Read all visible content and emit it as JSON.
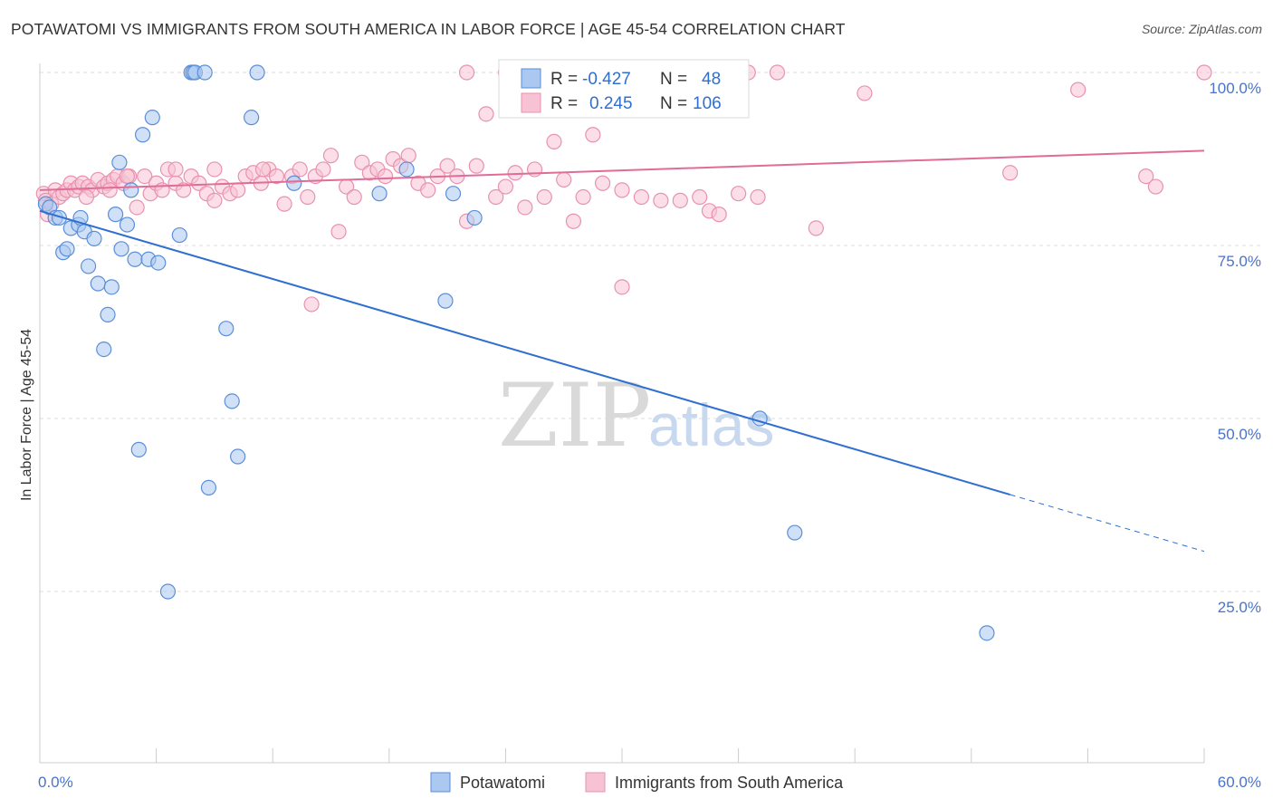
{
  "title": "POTAWATOMI VS IMMIGRANTS FROM SOUTH AMERICA IN LABOR FORCE | AGE 45-54 CORRELATION CHART",
  "source": "Source: ZipAtlas.com",
  "watermark": {
    "zip": "ZIP",
    "atlas": "atlas"
  },
  "legend": {
    "rows": [
      {
        "r_label": "R =",
        "r_value": "-0.427",
        "n_label": "N =",
        "n_value": "48"
      },
      {
        "r_label": "R =",
        "r_value": "0.245",
        "n_label": "N =",
        "n_value": "106"
      }
    ]
  },
  "chart_data": {
    "type": "scatter",
    "title": "POTAWATOMI VS IMMIGRANTS FROM SOUTH AMERICA IN LABOR FORCE | AGE 45-54 CORRELATION CHART",
    "xlabel": "",
    "ylabel": "In Labor Force | Age 45-54",
    "xlim": [
      0,
      60
    ],
    "ylim": [
      0,
      104
    ],
    "x_tick_labels": [
      "0.0%",
      "60.0%"
    ],
    "y_ticks": [
      25,
      50,
      75,
      100
    ],
    "y_tick_labels": [
      "25.0%",
      "50.0%",
      "75.0%",
      "100.0%"
    ],
    "colors": {
      "potawatomi_fill": "#aac8f0",
      "potawatomi_stroke": "#5b8ed8",
      "potawatomi_line": "#2f6fd0",
      "immigrants_fill": "#f7c3d4",
      "immigrants_stroke": "#e892b0",
      "immigrants_line": "#e06c98",
      "text_blue": "#2f6fd0",
      "grid": "#dcdcdc"
    },
    "series": [
      {
        "name": "Potawatomi",
        "r": -0.427,
        "n": 48,
        "trend": {
          "x_solid": [
            0,
            50
          ],
          "x_dashed": [
            50,
            60
          ],
          "intercept": 80.0,
          "slope": -0.82
        },
        "points": [
          {
            "x": 0.3,
            "y": 81
          },
          {
            "x": 0.5,
            "y": 80.5
          },
          {
            "x": 0.8,
            "y": 79
          },
          {
            "x": 1.0,
            "y": 79
          },
          {
            "x": 1.2,
            "y": 74
          },
          {
            "x": 1.4,
            "y": 74.5
          },
          {
            "x": 1.6,
            "y": 77.5
          },
          {
            "x": 2.0,
            "y": 78
          },
          {
            "x": 2.1,
            "y": 79
          },
          {
            "x": 2.3,
            "y": 77
          },
          {
            "x": 2.5,
            "y": 72
          },
          {
            "x": 2.8,
            "y": 76
          },
          {
            "x": 3.0,
            "y": 69.5
          },
          {
            "x": 3.3,
            "y": 60
          },
          {
            "x": 3.5,
            "y": 65
          },
          {
            "x": 3.7,
            "y": 69
          },
          {
            "x": 3.9,
            "y": 79.5
          },
          {
            "x": 4.1,
            "y": 87
          },
          {
            "x": 4.2,
            "y": 74.5
          },
          {
            "x": 4.5,
            "y": 78
          },
          {
            "x": 4.7,
            "y": 83
          },
          {
            "x": 4.9,
            "y": 73
          },
          {
            "x": 5.1,
            "y": 45.5
          },
          {
            "x": 5.3,
            "y": 91
          },
          {
            "x": 5.6,
            "y": 73
          },
          {
            "x": 5.8,
            "y": 93.5
          },
          {
            "x": 6.1,
            "y": 72.5
          },
          {
            "x": 6.6,
            "y": 25
          },
          {
            "x": 7.2,
            "y": 76.5
          },
          {
            "x": 7.8,
            "y": 100
          },
          {
            "x": 7.9,
            "y": 100
          },
          {
            "x": 8.0,
            "y": 100
          },
          {
            "x": 8.5,
            "y": 100
          },
          {
            "x": 8.7,
            "y": 40
          },
          {
            "x": 9.6,
            "y": 63
          },
          {
            "x": 9.9,
            "y": 52.5
          },
          {
            "x": 10.2,
            "y": 44.5
          },
          {
            "x": 10.9,
            "y": 93.5
          },
          {
            "x": 11.2,
            "y": 100
          },
          {
            "x": 13.1,
            "y": 84
          },
          {
            "x": 17.5,
            "y": 82.5
          },
          {
            "x": 18.9,
            "y": 86
          },
          {
            "x": 20.9,
            "y": 67
          },
          {
            "x": 21.3,
            "y": 82.5
          },
          {
            "x": 22.4,
            "y": 79
          },
          {
            "x": 37.1,
            "y": 50
          },
          {
            "x": 38.9,
            "y": 33.5
          },
          {
            "x": 48.8,
            "y": 19
          }
        ]
      },
      {
        "name": "Immigrants from South America",
        "r": 0.245,
        "n": 106,
        "trend": {
          "x_solid": [
            0,
            60
          ],
          "intercept": 83.0,
          "slope": 0.095
        },
        "points": [
          {
            "x": 0.2,
            "y": 82.5
          },
          {
            "x": 0.3,
            "y": 81.5
          },
          {
            "x": 0.4,
            "y": 79.5
          },
          {
            "x": 0.6,
            "y": 81
          },
          {
            "x": 0.8,
            "y": 83
          },
          {
            "x": 1.0,
            "y": 82
          },
          {
            "x": 1.2,
            "y": 82.5
          },
          {
            "x": 1.4,
            "y": 83
          },
          {
            "x": 1.6,
            "y": 84
          },
          {
            "x": 1.8,
            "y": 83
          },
          {
            "x": 2.0,
            "y": 83.5
          },
          {
            "x": 2.2,
            "y": 84
          },
          {
            "x": 2.5,
            "y": 83.5
          },
          {
            "x": 2.7,
            "y": 83
          },
          {
            "x": 3.0,
            "y": 84.5
          },
          {
            "x": 3.3,
            "y": 83.5
          },
          {
            "x": 3.5,
            "y": 84
          },
          {
            "x": 3.8,
            "y": 84.5
          },
          {
            "x": 4.0,
            "y": 85
          },
          {
            "x": 4.3,
            "y": 84
          },
          {
            "x": 4.6,
            "y": 85
          },
          {
            "x": 5.0,
            "y": 80.5
          },
          {
            "x": 5.4,
            "y": 85
          },
          {
            "x": 5.7,
            "y": 82.5
          },
          {
            "x": 6.0,
            "y": 84
          },
          {
            "x": 6.3,
            "y": 83
          },
          {
            "x": 6.6,
            "y": 86
          },
          {
            "x": 7.0,
            "y": 84
          },
          {
            "x": 7.4,
            "y": 83
          },
          {
            "x": 7.8,
            "y": 85
          },
          {
            "x": 8.2,
            "y": 84
          },
          {
            "x": 8.6,
            "y": 82.5
          },
          {
            "x": 9.0,
            "y": 81.5
          },
          {
            "x": 9.4,
            "y": 83.5
          },
          {
            "x": 9.8,
            "y": 82.5
          },
          {
            "x": 10.2,
            "y": 83
          },
          {
            "x": 10.6,
            "y": 85
          },
          {
            "x": 11.0,
            "y": 85.5
          },
          {
            "x": 11.4,
            "y": 84
          },
          {
            "x": 11.8,
            "y": 86
          },
          {
            "x": 12.2,
            "y": 85
          },
          {
            "x": 12.6,
            "y": 81
          },
          {
            "x": 13.0,
            "y": 85
          },
          {
            "x": 13.4,
            "y": 86
          },
          {
            "x": 13.8,
            "y": 82
          },
          {
            "x": 14.2,
            "y": 85
          },
          {
            "x": 14.6,
            "y": 86
          },
          {
            "x": 15.0,
            "y": 88
          },
          {
            "x": 15.4,
            "y": 77
          },
          {
            "x": 15.8,
            "y": 83.5
          },
          {
            "x": 16.2,
            "y": 82
          },
          {
            "x": 16.6,
            "y": 87
          },
          {
            "x": 17.0,
            "y": 85.5
          },
          {
            "x": 17.4,
            "y": 86
          },
          {
            "x": 17.8,
            "y": 85
          },
          {
            "x": 18.2,
            "y": 87.5
          },
          {
            "x": 18.6,
            "y": 86.5
          },
          {
            "x": 19.0,
            "y": 88
          },
          {
            "x": 19.5,
            "y": 84
          },
          {
            "x": 20.0,
            "y": 83
          },
          {
            "x": 20.5,
            "y": 85
          },
          {
            "x": 21.0,
            "y": 86.5
          },
          {
            "x": 21.5,
            "y": 85
          },
          {
            "x": 22.0,
            "y": 78.5
          },
          {
            "x": 22.5,
            "y": 86.5
          },
          {
            "x": 23.0,
            "y": 94
          },
          {
            "x": 23.5,
            "y": 82
          },
          {
            "x": 24.0,
            "y": 83.5
          },
          {
            "x": 24.5,
            "y": 85.5
          },
          {
            "x": 25.0,
            "y": 80.5
          },
          {
            "x": 25.5,
            "y": 86
          },
          {
            "x": 26.0,
            "y": 82
          },
          {
            "x": 26.5,
            "y": 90
          },
          {
            "x": 27.0,
            "y": 84.5
          },
          {
            "x": 27.5,
            "y": 78.5
          },
          {
            "x": 28.0,
            "y": 82
          },
          {
            "x": 28.5,
            "y": 91
          },
          {
            "x": 29.0,
            "y": 84
          },
          {
            "x": 30.0,
            "y": 83
          },
          {
            "x": 31.0,
            "y": 82
          },
          {
            "x": 32.0,
            "y": 81.5
          },
          {
            "x": 33.0,
            "y": 81.5
          },
          {
            "x": 34.0,
            "y": 82
          },
          {
            "x": 34.5,
            "y": 80
          },
          {
            "x": 35.0,
            "y": 79.5
          },
          {
            "x": 36.0,
            "y": 82.5
          },
          {
            "x": 37.0,
            "y": 82
          },
          {
            "x": 30.0,
            "y": 69
          },
          {
            "x": 14.0,
            "y": 66.5
          },
          {
            "x": 22.0,
            "y": 100
          },
          {
            "x": 24.0,
            "y": 100
          },
          {
            "x": 36.5,
            "y": 100
          },
          {
            "x": 38.0,
            "y": 100
          },
          {
            "x": 42.5,
            "y": 97
          },
          {
            "x": 50.0,
            "y": 85.5
          },
          {
            "x": 53.5,
            "y": 97.5
          },
          {
            "x": 60.0,
            "y": 100
          },
          {
            "x": 57.0,
            "y": 85
          },
          {
            "x": 57.5,
            "y": 83.5
          },
          {
            "x": 40.0,
            "y": 77.5
          },
          {
            "x": 7.0,
            "y": 86
          },
          {
            "x": 9.0,
            "y": 86
          },
          {
            "x": 11.5,
            "y": 86
          },
          {
            "x": 4.5,
            "y": 85
          },
          {
            "x": 3.6,
            "y": 83
          },
          {
            "x": 2.4,
            "y": 82
          }
        ]
      }
    ],
    "legend_bottom": [
      "Potawatomi",
      "Immigrants from South America"
    ]
  }
}
